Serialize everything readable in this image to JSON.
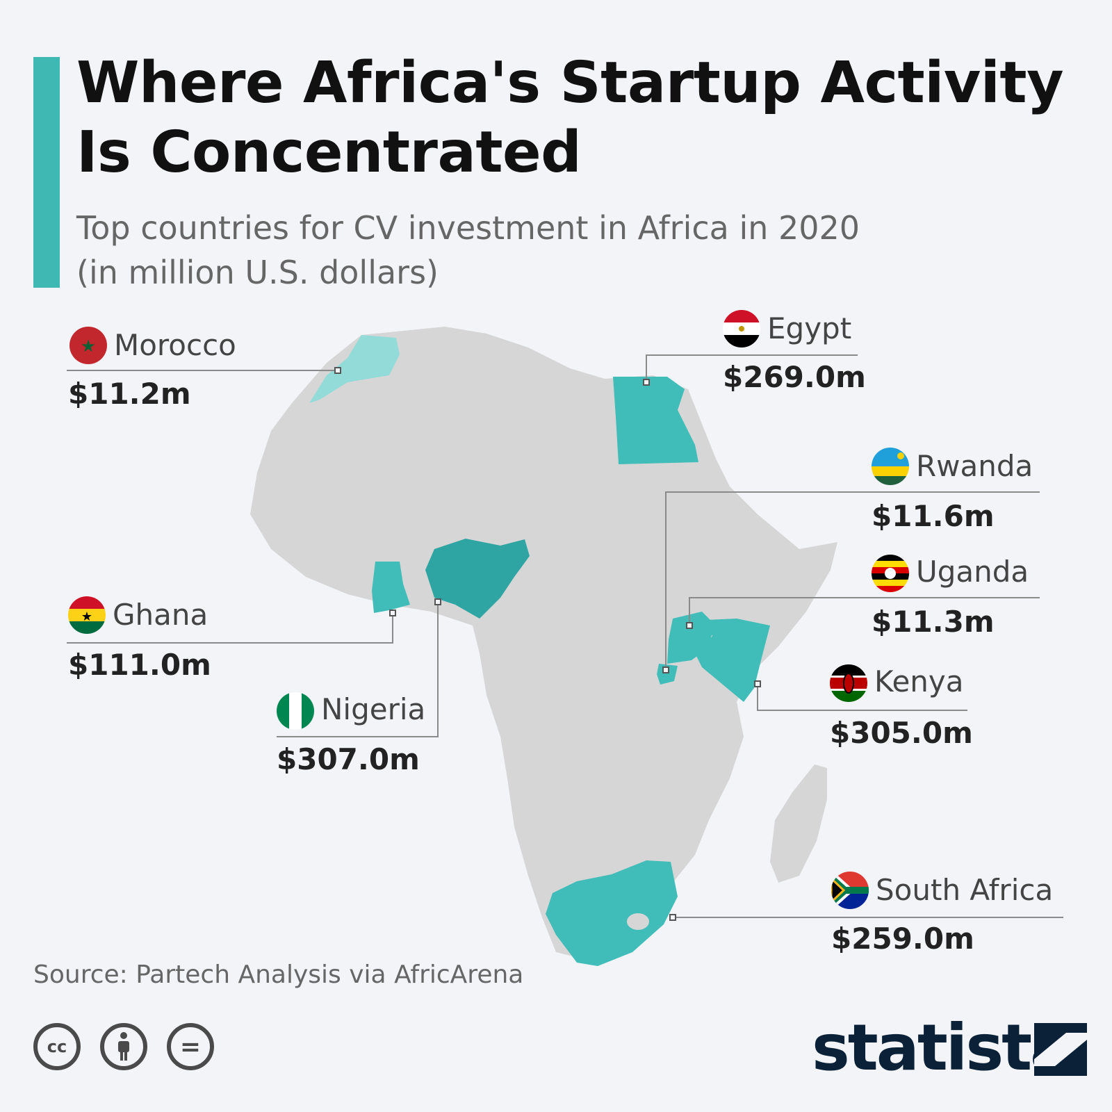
{
  "title": "Where Africa's Startup Activity Is Concentrated",
  "subtitle_line1": "Top countries for CV investment in Africa in 2020",
  "subtitle_line2": "(in million U.S. dollars)",
  "colors": {
    "accent": "#3fb8b4",
    "land": "#d6d6d6",
    "highlight": "#40bdb8",
    "highlight_dark": "#2ea5a3",
    "highlight_light": "#93dbd8"
  },
  "countries": [
    {
      "id": "morocco",
      "name": "Morocco",
      "value": "$11.2m",
      "amount": 11.2
    },
    {
      "id": "egypt",
      "name": "Egypt",
      "value": "$269.0m",
      "amount": 269.0
    },
    {
      "id": "rwanda",
      "name": "Rwanda",
      "value": "$11.6m",
      "amount": 11.6
    },
    {
      "id": "uganda",
      "name": "Uganda",
      "value": "$11.3m",
      "amount": 11.3
    },
    {
      "id": "ghana",
      "name": "Ghana",
      "value": "$111.0m",
      "amount": 111.0
    },
    {
      "id": "nigeria",
      "name": "Nigeria",
      "value": "$307.0m",
      "amount": 307.0
    },
    {
      "id": "kenya",
      "name": "Kenya",
      "value": "$305.0m",
      "amount": 305.0
    },
    {
      "id": "south_africa",
      "name": "South Africa",
      "value": "$259.0m",
      "amount": 259.0
    }
  ],
  "source": "Source: Partech Analysis via AfricArena",
  "license_icons": [
    "creative-commons-icon",
    "attribution-icon",
    "no-derivatives-icon"
  ],
  "license_labels": {
    "cc": "cc",
    "nd": "="
  },
  "logo": "statista"
}
